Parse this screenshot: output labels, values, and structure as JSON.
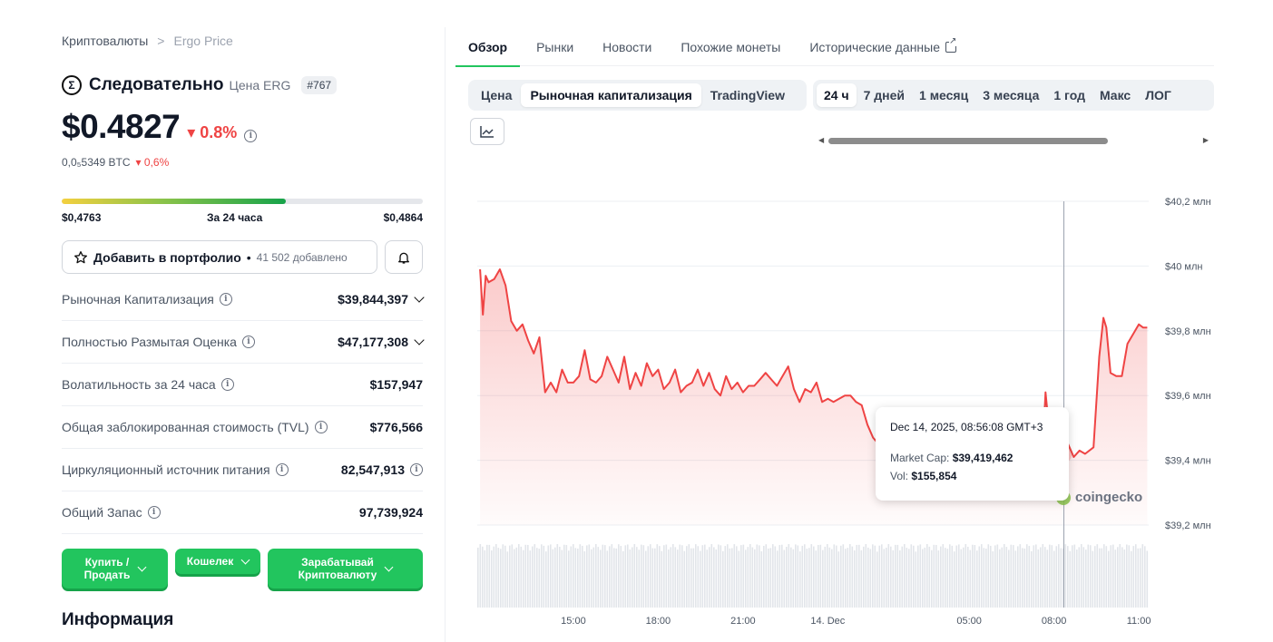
{
  "breadcrumb": {
    "root": "Криптовалюты",
    "sep": ">",
    "current": "Ergo Price"
  },
  "coin": {
    "logo_glyph": "Σ",
    "name": "Следовательно",
    "sub": "Цена ERG",
    "rank": "#767",
    "price": "$0.4827",
    "change": "▾ 0.8%",
    "btc_price": "0,0₅5349 BTC",
    "btc_change": "▾ 0,6%",
    "change_color": "#ef4444"
  },
  "range": {
    "low": "$0,4763",
    "label": "За 24 часа",
    "high": "$0,4864",
    "position_pct": 62
  },
  "portfolio": {
    "label": "Добавить в портфолио",
    "separator": "•",
    "count": "41 502 добавлено",
    "star_icon": "star-icon",
    "bell_icon": "bell-icon"
  },
  "stats": [
    {
      "label": "Рыночная Капитализация",
      "value": "$39,844,397",
      "expandable": true,
      "value_info": false
    },
    {
      "label": "Полностью Размытая Оценка",
      "value": "$47,177,308",
      "expandable": true,
      "value_info": false
    },
    {
      "label": "Волатильность за 24 часа",
      "value": "$157,947",
      "expandable": false,
      "value_info": false
    },
    {
      "label": "Общая заблокированная стоимость (TVL)",
      "value": "$776,566",
      "expandable": false,
      "value_info": false
    },
    {
      "label": "Циркуляционный источник питания",
      "value": "82,547,913",
      "expandable": false,
      "value_info": true
    },
    {
      "label": "Общий Запас",
      "value": "97,739,924",
      "expandable": false,
      "value_info": false
    }
  ],
  "actions": {
    "buy_line1": "Купить /",
    "buy_line2": "Продать",
    "wallet": "Кошелек",
    "earn_line1": "Зарабатывай",
    "earn_line2": "Криптовалюту"
  },
  "info_title": "Информация",
  "tabs": [
    {
      "label": "Обзор",
      "active": true
    },
    {
      "label": "Рынки",
      "active": false
    },
    {
      "label": "Новости",
      "active": false
    },
    {
      "label": "Похожие монеты",
      "active": false
    },
    {
      "label": "Исторические данные",
      "active": false,
      "external": true
    }
  ],
  "chart_modes": [
    {
      "label": "Цена",
      "selected": false
    },
    {
      "label": "Рыночная капитализация",
      "selected": true
    },
    {
      "label": "TradingView",
      "selected": false
    }
  ],
  "time_ranges": [
    {
      "label": "24 ч",
      "selected": true
    },
    {
      "label": "7 дней",
      "selected": false
    },
    {
      "label": "1 месяц",
      "selected": false
    },
    {
      "label": "3 месяца",
      "selected": false
    },
    {
      "label": "1 год",
      "selected": false
    },
    {
      "label": "Макс",
      "selected": false
    },
    {
      "label": "ЛОГ",
      "selected": false
    }
  ],
  "tooltip": {
    "date": "Dec 14, 2025, 08:56:08 GMT+3",
    "mcap_label": "Market Cap:",
    "mcap_value": "$39,419,462",
    "vol_label": "Vol:",
    "vol_value": "$155,854"
  },
  "watermark": "coingecko",
  "chart_data": {
    "type": "area",
    "line_color": "#ef4444",
    "y_ticks": [
      "$40,2 млн",
      "$40 млн",
      "$39,8 млн",
      "$39,6 млн",
      "$39,4 млн",
      "$39,2 млн"
    ],
    "y_tick_values": [
      40.2,
      40.0,
      39.8,
      39.6,
      39.4,
      39.2
    ],
    "ylim": [
      39.2,
      40.2
    ],
    "x_ticks": [
      "15:00",
      "18:00",
      "21:00",
      "14. Dec",
      "05:00",
      "08:00",
      "11:00"
    ],
    "x_tick_hours": [
      15,
      18,
      21,
      24,
      29,
      32,
      35
    ],
    "xlim": [
      11.6,
      35.35
    ],
    "hover_hour": 32.35,
    "hover_value": 39.419,
    "series": [
      {
        "values": [
          [
            11.7,
            39.99
          ],
          [
            11.8,
            39.85
          ],
          [
            11.9,
            39.97
          ],
          [
            12.0,
            39.95
          ],
          [
            12.2,
            39.96
          ],
          [
            12.4,
            39.99
          ],
          [
            12.6,
            39.94
          ],
          [
            12.8,
            39.83
          ],
          [
            13.0,
            39.8
          ],
          [
            13.2,
            39.82
          ],
          [
            13.4,
            39.77
          ],
          [
            13.6,
            39.73
          ],
          [
            13.8,
            39.78
          ],
          [
            14.0,
            39.61
          ],
          [
            14.2,
            39.64
          ],
          [
            14.4,
            39.61
          ],
          [
            14.6,
            39.68
          ],
          [
            14.8,
            39.64
          ],
          [
            15.0,
            39.64
          ],
          [
            15.2,
            39.66
          ],
          [
            15.4,
            39.74
          ],
          [
            15.6,
            39.65
          ],
          [
            15.8,
            39.64
          ],
          [
            16.0,
            39.66
          ],
          [
            16.2,
            39.72
          ],
          [
            16.4,
            39.68
          ],
          [
            16.6,
            39.64
          ],
          [
            16.8,
            39.72
          ],
          [
            17.0,
            39.62
          ],
          [
            17.2,
            39.67
          ],
          [
            17.4,
            39.63
          ],
          [
            17.6,
            39.7
          ],
          [
            17.8,
            39.66
          ],
          [
            18.0,
            39.68
          ],
          [
            18.2,
            39.62
          ],
          [
            18.4,
            39.64
          ],
          [
            18.6,
            39.68
          ],
          [
            18.8,
            39.61
          ],
          [
            19.0,
            39.63
          ],
          [
            19.2,
            39.64
          ],
          [
            19.4,
            39.68
          ],
          [
            19.6,
            39.63
          ],
          [
            19.8,
            39.67
          ],
          [
            20.0,
            39.62
          ],
          [
            20.2,
            39.6
          ],
          [
            20.4,
            39.66
          ],
          [
            20.6,
            39.62
          ],
          [
            20.8,
            39.64
          ],
          [
            21.0,
            39.61
          ],
          [
            21.2,
            39.63
          ],
          [
            21.4,
            39.63
          ],
          [
            21.6,
            39.65
          ],
          [
            21.8,
            39.67
          ],
          [
            22.0,
            39.65
          ],
          [
            22.2,
            39.63
          ],
          [
            22.4,
            39.66
          ],
          [
            22.6,
            39.69
          ],
          [
            22.8,
            39.62
          ],
          [
            23.0,
            39.58
          ],
          [
            23.2,
            39.62
          ],
          [
            23.4,
            39.61
          ],
          [
            23.6,
            39.64
          ],
          [
            23.8,
            39.58
          ],
          [
            24.0,
            39.59
          ],
          [
            24.2,
            39.58
          ],
          [
            24.4,
            39.59
          ],
          [
            24.6,
            39.6
          ],
          [
            24.8,
            39.6
          ],
          [
            25.0,
            39.58
          ],
          [
            25.2,
            39.57
          ],
          [
            25.4,
            39.51
          ],
          [
            25.6,
            39.47
          ],
          [
            25.8,
            39.45
          ],
          [
            26.0,
            39.41
          ],
          [
            26.2,
            39.43
          ],
          [
            26.4,
            39.44
          ],
          [
            26.6,
            39.45
          ],
          [
            26.8,
            39.47
          ],
          [
            27.0,
            39.43
          ],
          [
            27.2,
            39.45
          ],
          [
            27.4,
            39.41
          ],
          [
            27.6,
            39.41
          ],
          [
            27.8,
            39.4
          ],
          [
            28.0,
            39.43
          ],
          [
            28.2,
            39.43
          ],
          [
            28.4,
            39.44
          ],
          [
            28.6,
            39.43
          ],
          [
            28.8,
            39.41
          ],
          [
            29.0,
            39.41
          ],
          [
            29.2,
            39.4
          ],
          [
            29.4,
            39.43
          ],
          [
            29.6,
            39.43
          ],
          [
            29.8,
            39.41
          ],
          [
            30.0,
            39.42
          ],
          [
            30.2,
            39.42
          ],
          [
            30.4,
            39.43
          ],
          [
            30.6,
            39.41
          ],
          [
            30.8,
            39.43
          ],
          [
            31.0,
            39.44
          ],
          [
            31.2,
            39.45
          ],
          [
            31.4,
            39.42
          ],
          [
            31.6,
            39.43
          ],
          [
            31.7,
            39.61
          ],
          [
            31.8,
            39.52
          ],
          [
            31.9,
            39.45
          ],
          [
            32.0,
            39.44
          ],
          [
            32.2,
            39.42
          ],
          [
            32.35,
            39.419
          ],
          [
            32.5,
            39.45
          ],
          [
            32.7,
            39.41
          ],
          [
            32.9,
            39.43
          ],
          [
            33.1,
            39.42
          ],
          [
            33.4,
            39.44
          ],
          [
            33.6,
            39.72
          ],
          [
            33.75,
            39.84
          ],
          [
            33.85,
            39.81
          ],
          [
            34.0,
            39.67
          ],
          [
            34.2,
            39.66
          ],
          [
            34.4,
            39.66
          ],
          [
            34.6,
            39.76
          ],
          [
            34.8,
            39.79
          ],
          [
            35.0,
            39.82
          ],
          [
            35.15,
            39.81
          ],
          [
            35.3,
            39.81
          ]
        ]
      }
    ]
  }
}
